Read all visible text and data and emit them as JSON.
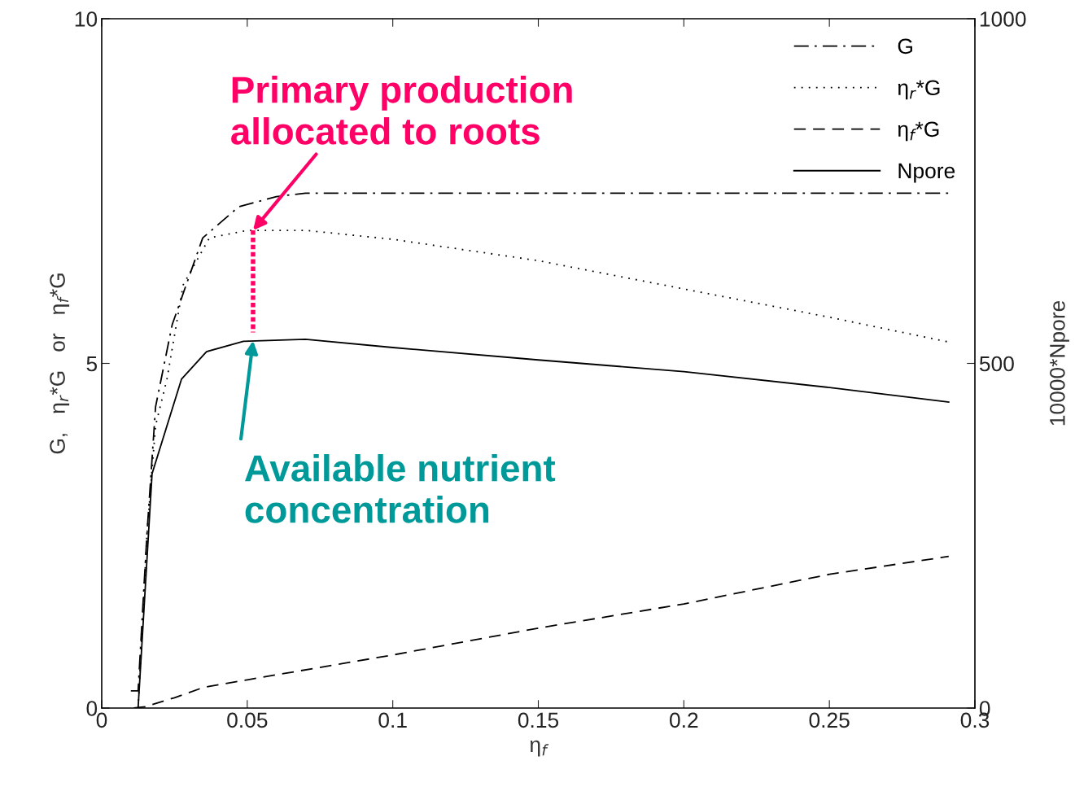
{
  "chart_data": {
    "type": "line",
    "xlabel": "η$_{f}$",
    "ylabel": "G,   η$_{r}$*G   or   η$_{f}$*G",
    "y2label": "10000*Npore",
    "xlim": [
      0,
      0.3
    ],
    "xticks": [
      0,
      0.05,
      0.1,
      0.15,
      0.2,
      0.25,
      0.3
    ],
    "ylim": [
      0,
      10
    ],
    "yticks": [
      0,
      5,
      10
    ],
    "y2lim": [
      0,
      1000
    ],
    "y2ticks": [
      0,
      500,
      1000
    ],
    "grid": false,
    "legend": "top right",
    "series": [
      {
        "name": "G",
        "color": "#000000",
        "line_style": "dashdot",
        "x": [
          0.01,
          0.0125,
          0.0155,
          0.0185,
          0.0242,
          0.0347,
          0.047,
          0.06,
          0.07,
          0.1,
          0.15,
          0.2,
          0.25,
          0.291
        ],
        "values": [
          0.25,
          0.25,
          2.5,
          4.37,
          5.56,
          6.82,
          7.27,
          7.42,
          7.47,
          7.47,
          7.47,
          7.47,
          7.47,
          7.47
        ]
      },
      {
        "name": "η$_{r}$*G",
        "color": "#000000",
        "line_style": "dotted",
        "x": [
          0.0125,
          0.0155,
          0.0185,
          0.0224,
          0.028,
          0.037,
          0.05,
          0.07,
          0.1,
          0.15,
          0.2,
          0.25,
          0.291
        ],
        "values": [
          0.0,
          2.5,
          4.1,
          4.77,
          6.14,
          6.82,
          6.93,
          6.93,
          6.8,
          6.49,
          6.08,
          5.67,
          5.31
        ]
      },
      {
        "name": "η$_{f}$*G",
        "color": "#000000",
        "line_style": "dashed",
        "x": [
          0.011,
          0.015,
          0.025,
          0.035,
          0.05,
          0.1,
          0.15,
          0.2,
          0.25,
          0.291
        ],
        "values": [
          0.0,
          0.02,
          0.15,
          0.3,
          0.41,
          0.77,
          1.16,
          1.51,
          1.94,
          2.2
        ]
      },
      {
        "name": "Npore",
        "color": "#000000",
        "line_style": "solid",
        "axis": "y2",
        "x": [
          0.0125,
          0.0173,
          0.0274,
          0.036,
          0.0487,
          0.07,
          0.1,
          0.15,
          0.2,
          0.25,
          0.291
        ],
        "values": [
          0,
          340,
          477,
          517,
          532,
          535,
          523,
          505,
          488,
          465,
          444
        ]
      },
      {
        "color": "#ff0066",
        "line_style": "dotted",
        "x": [
          0.052,
          0.052
        ],
        "values": [
          6.93,
          5.45
        ]
      }
    ],
    "annotations": [
      {
        "text": "Primary production\nallocated to roots",
        "x": 0.052,
        "y": 6.93
      },
      {
        "text": "Available nutrient\nconcentration",
        "x": 0.052,
        "y": 5.33
      }
    ]
  }
}
